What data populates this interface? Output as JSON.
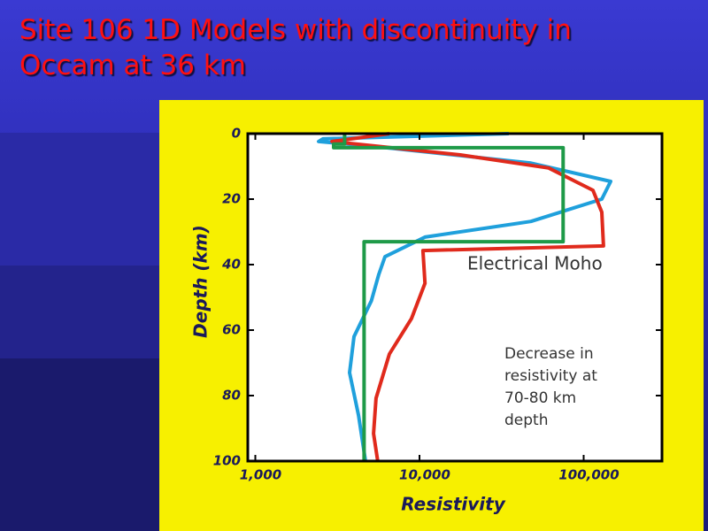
{
  "chart_data": {
    "type": "line",
    "title": [
      "Site 106 1D Models with discontinuity in",
      "Occam at 36 km"
    ],
    "xlabel": "Resistivity",
    "ylabel": "Depth (km)",
    "xscale": "log",
    "xlim": [
      900,
      300000
    ],
    "ylim": [
      100,
      0
    ],
    "xticks": [
      {
        "value": 1000,
        "label": "1,000"
      },
      {
        "value": 10000,
        "label": "10,000"
      },
      {
        "value": 100000,
        "label": "100,000"
      }
    ],
    "yticks": [
      0,
      20,
      40,
      60,
      80,
      100
    ],
    "annotations": [
      {
        "text": "Electrical Moho"
      },
      {
        "lines": [
          "Decrease in",
          "resistivity at",
          "70-80 km",
          "depth"
        ]
      }
    ],
    "series": [
      {
        "color": "#1fa0dc",
        "x": [
          35000,
          2580,
          2430,
          5100,
          47700,
          146000,
          129000,
          47700,
          10800,
          6160,
          5650,
          5100,
          3990,
          3750,
          4250,
          4690
        ],
        "y": [
          0,
          1.6,
          2.4,
          3.8,
          9,
          14.6,
          20,
          26.8,
          31.6,
          37.6,
          43,
          51,
          62,
          73,
          86,
          100
        ]
      },
      {
        "color": "#e02a1c",
        "x": [
          6560,
          2930,
          17700,
          61200,
          114000,
          129000,
          132000,
          10500,
          10800,
          8930,
          6560,
          5440,
          5250,
          5570
        ],
        "y": [
          0,
          2.4,
          6.5,
          10.5,
          17.3,
          24,
          34.3,
          35.7,
          45.7,
          56.5,
          67.3,
          80.8,
          91.6,
          100
        ]
      },
      {
        "color": "#1e9a48",
        "x": [
          3500,
          3500,
          3000,
          3000,
          75000,
          75000,
          4600,
          4600
        ],
        "y": [
          0,
          3.2,
          3.2,
          4.3,
          4.3,
          33,
          33,
          100
        ]
      }
    ]
  }
}
